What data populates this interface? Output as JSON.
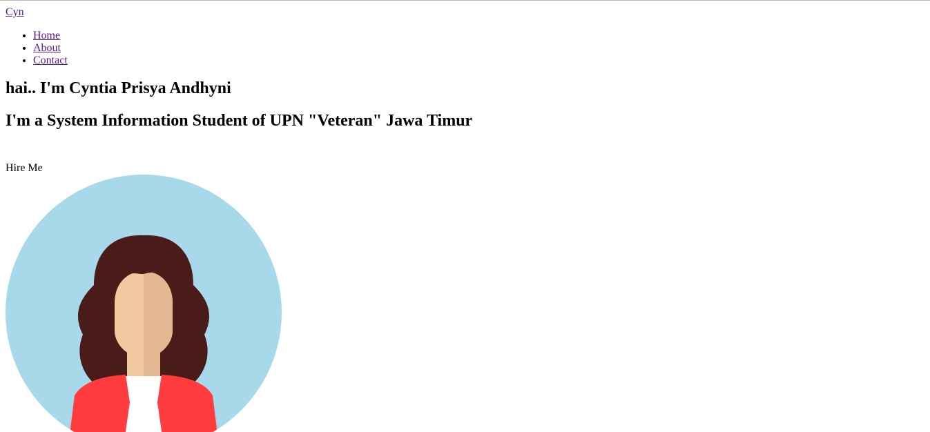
{
  "nav": {
    "brand": "Cyn",
    "items": [
      {
        "label": "Home"
      },
      {
        "label": "About"
      },
      {
        "label": "Contact"
      }
    ]
  },
  "hero": {
    "greeting": "hai.. I'm Cyntia Prisya Andhyni",
    "subtitle": "I'm a System Information Student of UPN \"Veteran\" Jawa Timur",
    "cta": "Hire Me"
  },
  "colors": {
    "link": "#551a8b",
    "avatar_bg": "#a8d9ea",
    "hair": "#4a1c19",
    "skin_light": "#f1c9a0",
    "skin_shadow": "#e3b792",
    "jacket": "#ff3d3f",
    "shirt": "#ffffff"
  }
}
